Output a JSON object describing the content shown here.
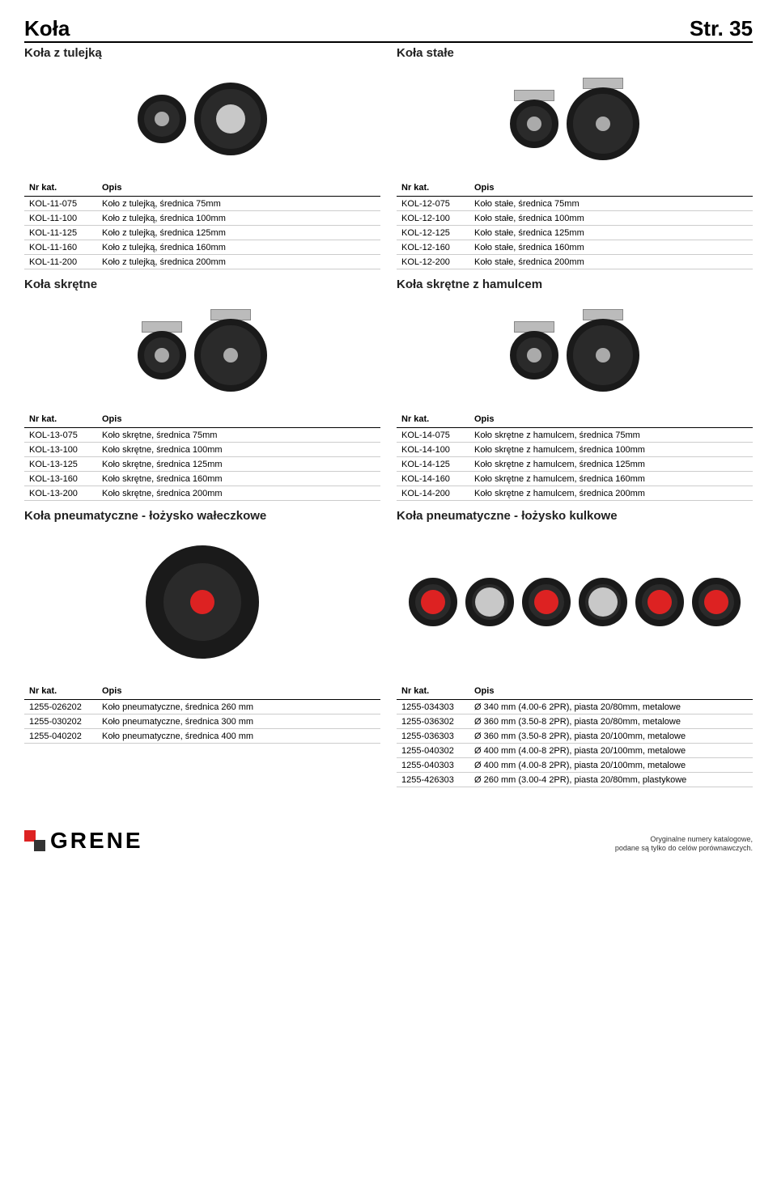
{
  "header": {
    "title": "Koła",
    "page": "Str. 35"
  },
  "columns": {
    "nrkat": "Nr kat.",
    "opis": "Opis"
  },
  "sections": [
    {
      "left": {
        "title": "Koła z tulejką",
        "rows": [
          [
            "KOL-11-075",
            "Koło z tulejką, średnica 75mm"
          ],
          [
            "KOL-11-100",
            "Koło z tulejką, średnica 100mm"
          ],
          [
            "KOL-11-125",
            "Koło z tulejką, średnica 125mm"
          ],
          [
            "KOL-11-160",
            "Koło z tulejką, średnica 160mm"
          ],
          [
            "KOL-11-200",
            "Koło z tulejką, średnica 200mm"
          ]
        ]
      },
      "right": {
        "title": "Koła stałe",
        "rows": [
          [
            "KOL-12-075",
            "Koło stałe, średnica 75mm"
          ],
          [
            "KOL-12-100",
            "Koło stałe, średnica 100mm"
          ],
          [
            "KOL-12-125",
            "Koło stałe, średnica 125mm"
          ],
          [
            "KOL-12-160",
            "Koło stałe, średnica 160mm"
          ],
          [
            "KOL-12-200",
            "Koło stałe, średnica 200mm"
          ]
        ]
      }
    },
    {
      "left": {
        "title": "Koła skrętne",
        "rows": [
          [
            "KOL-13-075",
            "Koło skrętne, średnica 75mm"
          ],
          [
            "KOL-13-100",
            "Koło skrętne, średnica 100mm"
          ],
          [
            "KOL-13-125",
            "Koło skrętne, średnica 125mm"
          ],
          [
            "KOL-13-160",
            "Koło skrętne, średnica 160mm"
          ],
          [
            "KOL-13-200",
            "Koło skrętne, średnica 200mm"
          ]
        ]
      },
      "right": {
        "title": "Koła skrętne z hamulcem",
        "rows": [
          [
            "KOL-14-075",
            "Koło skrętne z hamulcem, średnica 75mm"
          ],
          [
            "KOL-14-100",
            "Koło skrętne z hamulcem, średnica 100mm"
          ],
          [
            "KOL-14-125",
            "Koło skrętne z hamulcem, średnica 125mm"
          ],
          [
            "KOL-14-160",
            "Koło skrętne z hamulcem, średnica 160mm"
          ],
          [
            "KOL-14-200",
            "Koło skrętne z hamulcem, średnica 200mm"
          ]
        ]
      }
    },
    {
      "left": {
        "title": "Koła pneumatyczne - łożysko wałeczkowe",
        "rows": [
          [
            "1255-026202",
            "Koło pneumatyczne, średnica 260 mm"
          ],
          [
            "1255-030202",
            "Koło pneumatyczne, średnica 300 mm"
          ],
          [
            "1255-040202",
            "Koło pneumatyczne, średnica 400 mm"
          ]
        ]
      },
      "right": {
        "title": "Koła pneumatyczne - łożysko kulkowe",
        "rows": [
          [
            "1255-034303",
            "Ø 340 mm (4.00-6 2PR), piasta 20/80mm, metalowe"
          ],
          [
            "1255-036302",
            "Ø 360 mm (3.50-8 2PR), piasta 20/80mm, metalowe"
          ],
          [
            "1255-036303",
            "Ø 360 mm (3.50-8 2PR), piasta 20/100mm, metalowe"
          ],
          [
            "1255-040302",
            "Ø 400 mm (4.00-8 2PR), piasta 20/100mm, metalowe"
          ],
          [
            "1255-040303",
            "Ø 400 mm (4.00-8 2PR), piasta 20/100mm, metalowe"
          ],
          [
            "1255-426303",
            "Ø 260 mm (3.00-4 2PR), piasta 20/80mm, plastykowe"
          ]
        ]
      }
    }
  ],
  "footer": {
    "logo": "GRENE",
    "note1": "Oryginalne numery katalogowe,",
    "note2": "podane są tylko do celów porównawczych."
  },
  "colors": {
    "text": "#000000",
    "border": "#cccccc",
    "accent": "#d22222"
  }
}
